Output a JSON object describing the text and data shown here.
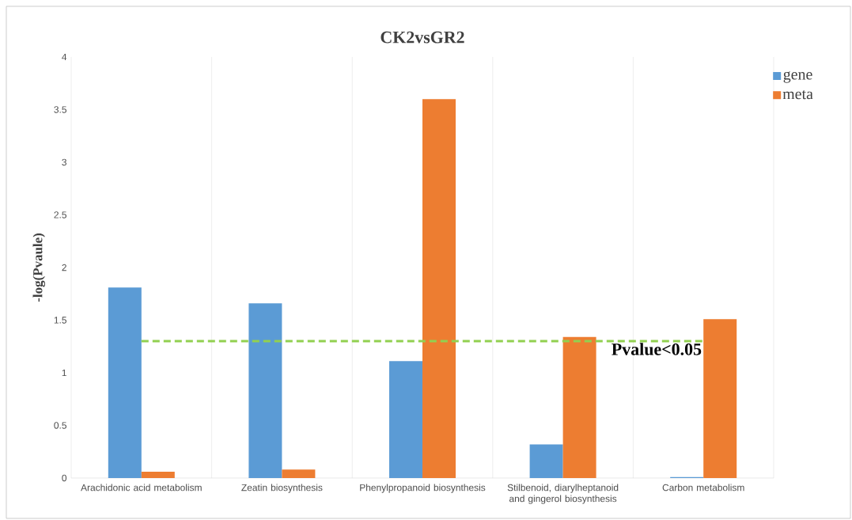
{
  "chart_data": {
    "type": "bar",
    "title": "CK2vsGR2",
    "ylabel": "-log(Pvaule)",
    "categories": [
      "Arachidonic acid metabolism",
      "Zeatin biosynthesis",
      "Phenylpropanoid biosynthesis",
      "Stilbenoid, diarylheptanoid and gingerol biosynthesis",
      "Carbon metabolism"
    ],
    "series": [
      {
        "name": "gene",
        "color": "#5b9bd5",
        "values": [
          1.81,
          1.66,
          1.11,
          0.32,
          0.01
        ]
      },
      {
        "name": "meta",
        "color": "#ed7d31",
        "values": [
          0.06,
          0.08,
          3.6,
          1.34,
          1.51
        ]
      }
    ],
    "ylim": [
      0,
      4
    ],
    "yticks": [
      0,
      0.5,
      1,
      1.5,
      2,
      2.5,
      3,
      3.5,
      4
    ],
    "ref_lines": [
      {
        "axis": "y",
        "value": 1.3,
        "label": "Pvalue<0.05",
        "color": "#92d050",
        "line_style": "dashed"
      }
    ],
    "grid": "x",
    "legend": "top right"
  }
}
